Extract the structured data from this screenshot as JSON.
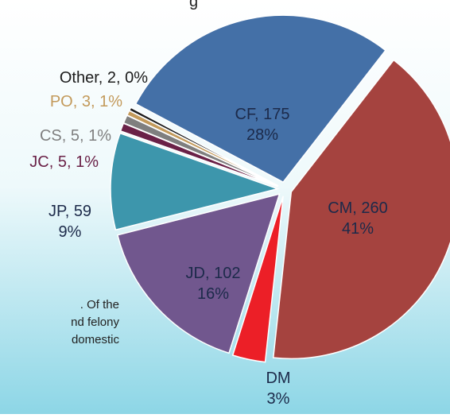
{
  "chart_data": {
    "type": "pie",
    "categories": [
      "CF",
      "CM",
      "DM",
      "JD",
      "JP",
      "JC",
      "CS",
      "PO",
      "Other"
    ],
    "values": [
      175,
      260,
      20,
      102,
      59,
      5,
      5,
      3,
      2
    ],
    "percents": [
      28,
      41,
      3,
      16,
      9,
      1,
      1,
      1,
      0
    ],
    "value_labels": [
      [
        "CF, 175",
        "28%"
      ],
      [
        "CM, 260",
        "41%"
      ],
      [
        "DM",
        "3%"
      ],
      [
        "JD, 102",
        "16%"
      ],
      [
        "JP, 59",
        "9%"
      ],
      [
        "JC, 5, 1%"
      ],
      [
        "CS, 5, 1%"
      ],
      [
        "PO, 3, 1%"
      ],
      [
        "Other, 2, 0%"
      ]
    ],
    "colors": [
      "#4470a7",
      "#a5433f",
      "#ec1f27",
      "#71578e",
      "#3d96ac",
      "#6a2147",
      "#7f7f7f",
      "#c39a5b",
      "#1c1c1c"
    ]
  },
  "text_fragments": [
    "g",
    ".  Of the",
    "nd felony",
    "domestic"
  ]
}
